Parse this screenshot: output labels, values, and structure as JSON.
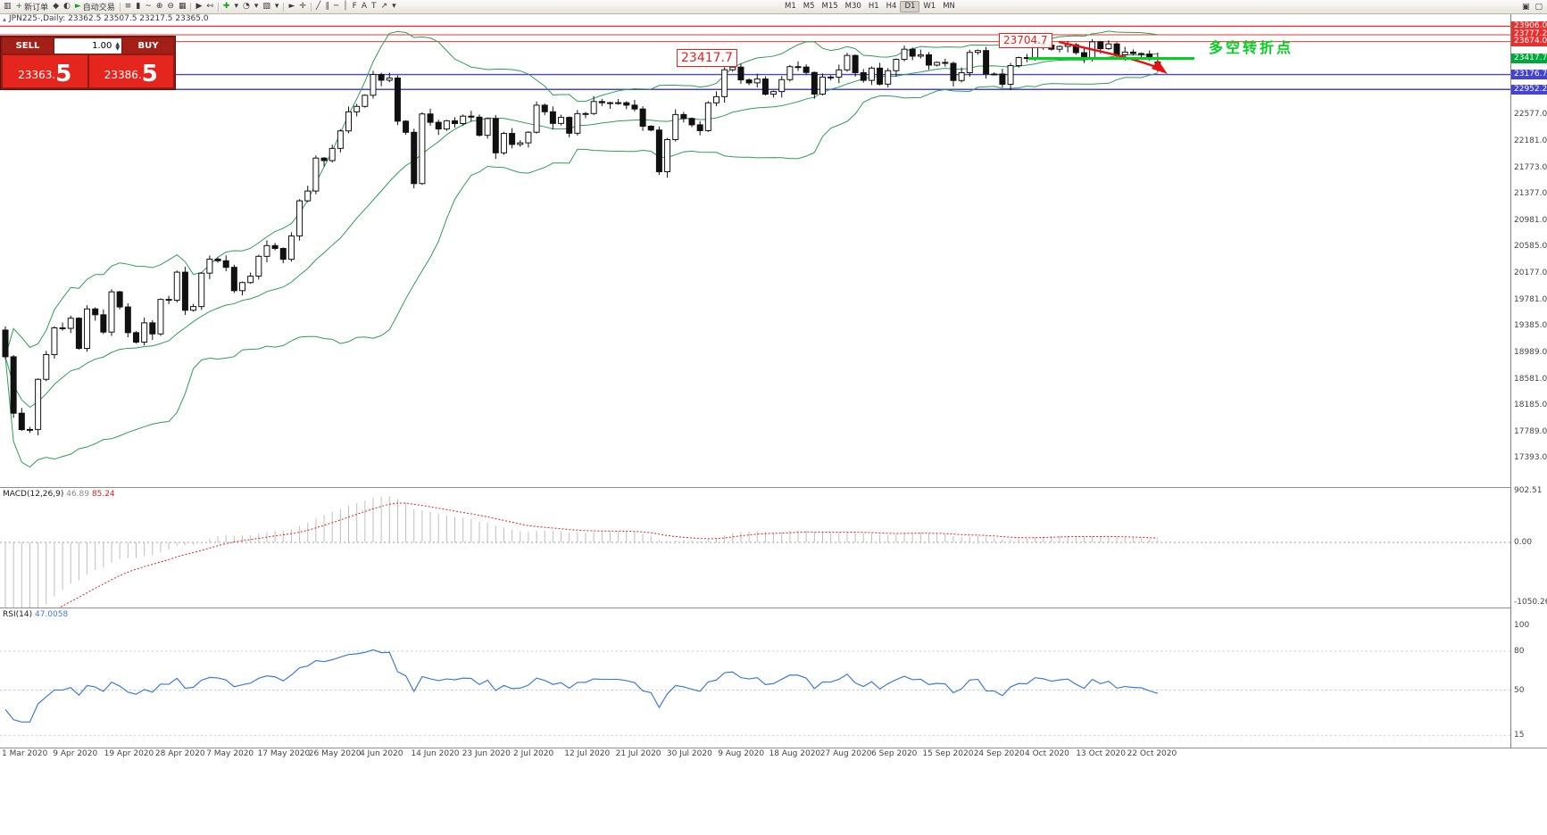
{
  "toolbar": {
    "buttons": [
      {
        "glyph": "▥",
        "name": "new-chart-icon"
      },
      {
        "glyph": "+",
        "name": "new-order-icon",
        "label": "新订单",
        "color": "#1a7f37"
      },
      {
        "glyph": "◆",
        "name": "metaeditor-icon"
      },
      {
        "glyph": "◐",
        "name": "market-watch-icon"
      },
      {
        "glyph": "►",
        "name": "autotrading-icon",
        "label": "自动交易",
        "color": "#15a015"
      },
      {
        "sep": true
      },
      {
        "glyph": "≡",
        "name": "bar-chart-icon"
      },
      {
        "glyph": "▮",
        "name": "candle-chart-icon"
      },
      {
        "glyph": "~",
        "name": "line-chart-icon"
      },
      {
        "glyph": "⊕",
        "name": "zoom-in-icon"
      },
      {
        "glyph": "⊖",
        "name": "zoom-out-icon"
      },
      {
        "glyph": "▦",
        "name": "tile-windows-icon"
      },
      {
        "sep": true
      },
      {
        "glyph": "▶",
        "name": "autoscroll-icon"
      },
      {
        "glyph": "↤",
        "name": "chart-shift-icon"
      },
      {
        "sep": true
      },
      {
        "glyph": "✚",
        "name": "indicators-icon",
        "color": "#15a015"
      },
      {
        "glyph": "▾",
        "name": "indicators-dropdown-icon"
      },
      {
        "glyph": "◔",
        "name": "periods-icon"
      },
      {
        "glyph": "▾",
        "name": "periods-dropdown-icon"
      },
      {
        "glyph": "▧",
        "name": "templates-icon"
      },
      {
        "glyph": "▾",
        "name": "templates-dropdown-icon"
      },
      {
        "sep": true
      },
      {
        "glyph": "►",
        "name": "cursor-icon"
      },
      {
        "glyph": "✛",
        "name": "crosshair-icon"
      },
      {
        "sep": true
      },
      {
        "glyph": "╱",
        "name": "trendline-icon"
      },
      {
        "glyph": "∥",
        "name": "channel-icon"
      },
      {
        "glyph": "─",
        "name": "horizontal-line-icon"
      },
      {
        "glyph": "│",
        "name": "vertical-line-icon"
      },
      {
        "glyph": "F",
        "name": "fibonacci-icon"
      },
      {
        "glyph": "A",
        "name": "text-icon"
      },
      {
        "glyph": "T",
        "name": "text-label-icon"
      },
      {
        "glyph": "↗",
        "name": "arrows-icon"
      },
      {
        "glyph": "▾",
        "name": "arrows-dropdown-icon"
      }
    ],
    "timeframes": [
      "M1",
      "M5",
      "M15",
      "M30",
      "H1",
      "H4",
      "D1",
      "W1",
      "MN"
    ],
    "active_timeframe": "D1",
    "right_buttons": [
      {
        "glyph": "▣",
        "name": "dock-window-icon"
      },
      {
        "glyph": "▢",
        "name": "new-window-icon"
      }
    ]
  },
  "header": {
    "title": "JPN225-,Daily: 23362.5 23507.5 23217.5 23365.0"
  },
  "one_click": {
    "sell_label": "SELL",
    "buy_label": "BUY",
    "lot": "1.00",
    "sell_price": "23363.",
    "sell_price_big": "5",
    "buy_price": "23386.",
    "buy_price_big": "5"
  },
  "annotations": {
    "mid_level_label": "23417.7",
    "high_level_label": "23704.7",
    "note": "多空转折点",
    "note_color": "#00d21f"
  },
  "price_axis": {
    "tags": [
      {
        "value": "23906.0",
        "color": "#e8312e"
      },
      {
        "value": "23777.2",
        "color": "#e8312e"
      },
      {
        "value": "23674.0",
        "color": "#e8312e"
      },
      {
        "value": "23417.7",
        "color": "#00a83c"
      },
      {
        "value": "23176.7",
        "color": "#4343d8"
      },
      {
        "value": "22952.2",
        "color": "#4343d8"
      }
    ],
    "labels": [
      "22577.0",
      "22181.0",
      "21773.0",
      "21377.0",
      "20981.0",
      "20585.0",
      "20177.0",
      "19781.0",
      "19385.0",
      "18989.0",
      "18581.0",
      "18185.0",
      "17789.0",
      "17393.0"
    ]
  },
  "macd_panel": {
    "name": "MACD(12,26,9)",
    "value_main": "46.89",
    "value_signal": "85.24",
    "scale": [
      "902.51",
      "0.00",
      "-1050.26"
    ]
  },
  "rsi_panel": {
    "name": "RSI(14)",
    "value": "47.0058",
    "scale": [
      "100",
      "80",
      "50",
      "15"
    ]
  },
  "date_axis": [
    "1 Mar 2020",
    "9 Apr 2020",
    "19 Apr 2020",
    "28 Apr 2020",
    "7 May 2020",
    "17 May 2020",
    "26 May 2020",
    "4 Jun 2020",
    "14 Jun 2020",
    "23 Jun 2020",
    "2 Jul 2020",
    "12 Jul 2020",
    "21 Jul 2020",
    "30 Jul 2020",
    "9 Aug 2020",
    "18 Aug 2020",
    "27 Aug 2020",
    "6 Sep 2020",
    "15 Sep 2020",
    "24 Sep 2020",
    "4 Oct 2020",
    "13 Oct 2020",
    "22 Oct 2020"
  ],
  "chart_data": {
    "type": "candlestick",
    "symbol": "JPN225-",
    "timeframe": "Daily",
    "title": "JPN225-,Daily",
    "last_ohlc": {
      "open": 23362.5,
      "high": 23507.5,
      "low": 23217.5,
      "close": 23365.0
    },
    "y_range": [
      16950,
      24100
    ],
    "x_range": [
      "31 Mar 2020",
      "29 Oct 2020"
    ],
    "indicators": [
      "Bollinger Bands(20,2)",
      "MACD(12,26,9)",
      "RSI(14)"
    ],
    "levels": [
      {
        "price": 23906.0,
        "color": "red"
      },
      {
        "price": 23777.2,
        "color": "red"
      },
      {
        "price": 23674.0,
        "color": "red"
      },
      {
        "price": 23417.7,
        "color": "green",
        "segment": [
          1152,
          1338
        ]
      },
      {
        "price": 23176.7,
        "color": "blue"
      },
      {
        "price": 22952.2,
        "color": "blue"
      }
    ],
    "closes": [
      18917,
      18065,
      17818,
      17820,
      18576,
      18950,
      19353,
      19346,
      19499,
      19043,
      19639,
      19551,
      19290,
      19897,
      19669,
      19281,
      19138,
      19429,
      19262,
      19783,
      19771,
      20194,
      19619,
      19675,
      20179,
      20391,
      20366,
      20267,
      19915,
      20037,
      20134,
      20433,
      20595,
      20552,
      20388,
      20741,
      21271,
      21419,
      21916,
      21878,
      22062,
      22326,
      22614,
      22696,
      22864,
      23178,
      23091,
      23125,
      22473,
      22305,
      21531,
      22582,
      22456,
      22355,
      22479,
      22437,
      22549,
      22534,
      22260,
      22512,
      21995,
      22288,
      22122,
      22146,
      22306,
      22714,
      22615,
      22439,
      22530,
      22291,
      22587,
      22588,
      22770,
      22751,
      22752,
      22751,
      22715,
      22657,
      22397,
      22339,
      21710,
      22195,
      22573,
      22514,
      22418,
      22330,
      22750,
      22843,
      23249,
      23289,
      23096,
      23051,
      23110,
      22880,
      22920,
      23100,
      23296,
      23290,
      23208,
      22882,
      23139,
      23138,
      23247,
      23465,
      23205,
      23089,
      23274,
      23032,
      23235,
      23406,
      23559,
      23454,
      23475,
      23319,
      23360,
      23346,
      23087,
      23204,
      23511,
      23539,
      23185,
      23185,
      23030,
      23312,
      23433,
      23423,
      23647,
      23620,
      23559,
      23601,
      23627,
      23507,
      23411,
      23671,
      23567,
      23639,
      23474,
      23516,
      23494,
      23486,
      23419,
      23365
    ]
  }
}
